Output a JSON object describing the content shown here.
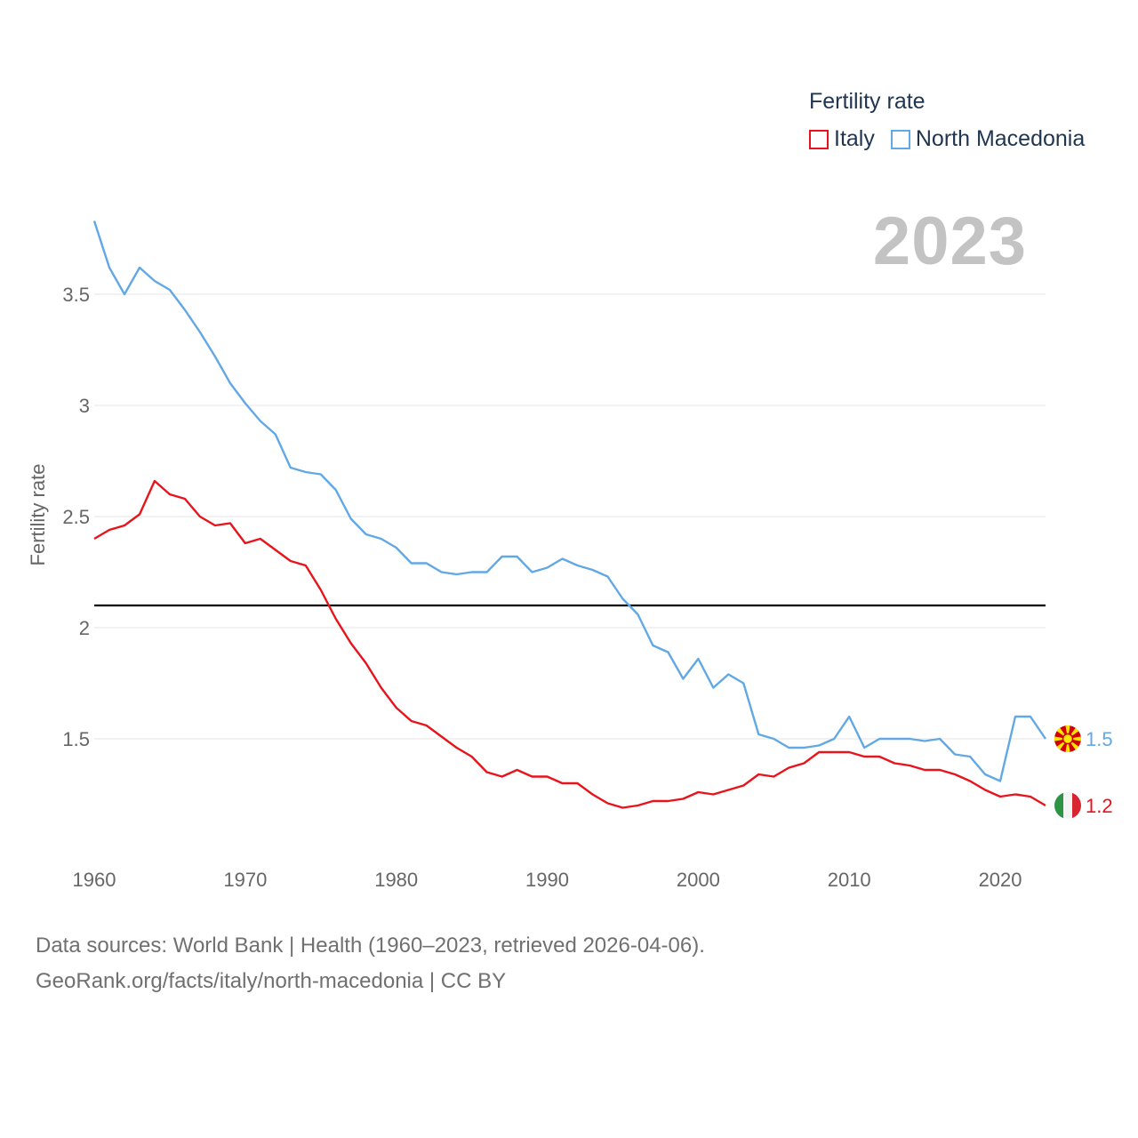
{
  "legend": {
    "title": "Fertility rate",
    "items": [
      {
        "label": "Italy",
        "color": "#e8141c"
      },
      {
        "label": "North Macedonia",
        "color": "#62a8e5"
      }
    ]
  },
  "year_display": "2023",
  "source": {
    "line1": "Data sources: World Bank | Health (1960–2023, retrieved 2026-04-06).",
    "line2": "GeoRank.org/facts/italy/north-macedonia | CC BY"
  },
  "colors": {
    "italy": "#e8141c",
    "north_macedonia": "#62a8e5",
    "grid": "#e6e6e6",
    "reference": "#000000"
  },
  "chart_data": {
    "type": "line",
    "title": "Fertility rate",
    "xlabel": "",
    "ylabel": "Fertility rate",
    "xlim": [
      1960,
      2023
    ],
    "ylim": [
      1.0,
      3.9
    ],
    "yticks": [
      1.5,
      2,
      2.5,
      3,
      3.5
    ],
    "ytick_labels": [
      "1.5",
      "2",
      "2.5",
      "3",
      "3.5"
    ],
    "xticks": [
      1960,
      1970,
      1980,
      1990,
      2000,
      2010,
      2020
    ],
    "xtick_labels": [
      "1960",
      "1970",
      "1980",
      "1990",
      "2000",
      "2010",
      "2020"
    ],
    "reference_line": 2.1,
    "x": [
      1960,
      1961,
      1962,
      1963,
      1964,
      1965,
      1966,
      1967,
      1968,
      1969,
      1970,
      1971,
      1972,
      1973,
      1974,
      1975,
      1976,
      1977,
      1978,
      1979,
      1980,
      1981,
      1982,
      1983,
      1984,
      1985,
      1986,
      1987,
      1988,
      1989,
      1990,
      1991,
      1992,
      1993,
      1994,
      1995,
      1996,
      1997,
      1998,
      1999,
      2000,
      2001,
      2002,
      2003,
      2004,
      2005,
      2006,
      2007,
      2008,
      2009,
      2010,
      2011,
      2012,
      2013,
      2014,
      2015,
      2016,
      2017,
      2018,
      2019,
      2020,
      2021,
      2022,
      2023
    ],
    "series": [
      {
        "name": "Italy",
        "color": "#e8141c",
        "end_label": "1.2",
        "values": [
          2.4,
          2.44,
          2.46,
          2.51,
          2.66,
          2.6,
          2.58,
          2.5,
          2.46,
          2.47,
          2.38,
          2.4,
          2.35,
          2.3,
          2.28,
          2.17,
          2.04,
          1.93,
          1.84,
          1.73,
          1.64,
          1.58,
          1.56,
          1.51,
          1.46,
          1.42,
          1.35,
          1.33,
          1.36,
          1.33,
          1.33,
          1.3,
          1.3,
          1.25,
          1.21,
          1.19,
          1.2,
          1.22,
          1.22,
          1.23,
          1.26,
          1.25,
          1.27,
          1.29,
          1.34,
          1.33,
          1.37,
          1.39,
          1.44,
          1.44,
          1.44,
          1.42,
          1.42,
          1.39,
          1.38,
          1.36,
          1.36,
          1.34,
          1.31,
          1.27,
          1.24,
          1.25,
          1.24,
          1.2
        ]
      },
      {
        "name": "North Macedonia",
        "color": "#62a8e5",
        "end_label": "1.5",
        "values": [
          3.83,
          3.62,
          3.5,
          3.62,
          3.56,
          3.52,
          3.43,
          3.33,
          3.22,
          3.1,
          3.01,
          2.93,
          2.87,
          2.72,
          2.7,
          2.69,
          2.62,
          2.49,
          2.42,
          2.4,
          2.36,
          2.29,
          2.29,
          2.25,
          2.24,
          2.25,
          2.25,
          2.32,
          2.32,
          2.25,
          2.27,
          2.31,
          2.28,
          2.26,
          2.23,
          2.13,
          2.06,
          1.92,
          1.89,
          1.77,
          1.86,
          1.73,
          1.79,
          1.75,
          1.52,
          1.5,
          1.46,
          1.46,
          1.47,
          1.5,
          1.6,
          1.46,
          1.5,
          1.5,
          1.5,
          1.49,
          1.5,
          1.43,
          1.42,
          1.34,
          1.31,
          1.6,
          1.6,
          1.5
        ]
      }
    ]
  }
}
